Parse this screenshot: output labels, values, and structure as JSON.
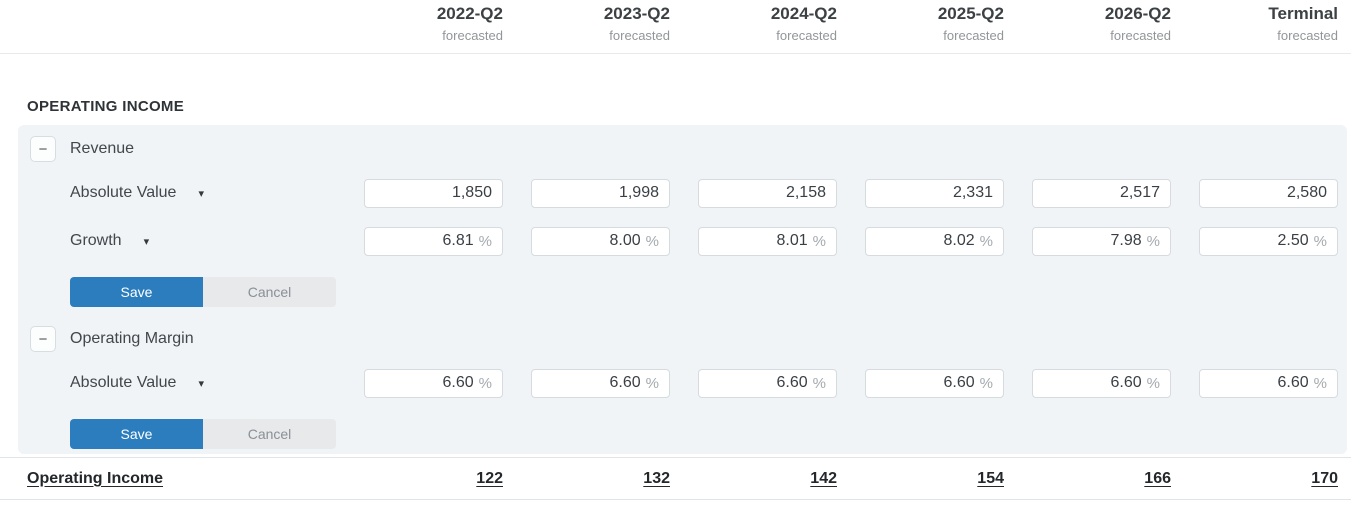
{
  "columns": [
    {
      "label": "2022-Q2",
      "sublabel": "forecasted"
    },
    {
      "label": "2023-Q2",
      "sublabel": "forecasted"
    },
    {
      "label": "2024-Q2",
      "sublabel": "forecasted"
    },
    {
      "label": "2025-Q2",
      "sublabel": "forecasted"
    },
    {
      "label": "2026-Q2",
      "sublabel": "forecasted"
    },
    {
      "label": "Terminal",
      "sublabel": "forecasted"
    }
  ],
  "section_title": "OPERATING INCOME",
  "icons": {
    "collapse": "−",
    "dropdown": "▾"
  },
  "actions": {
    "save": "Save",
    "cancel": "Cancel"
  },
  "groups": [
    {
      "name": "Revenue",
      "rows": [
        {
          "label": "Absolute Value",
          "suffix": "",
          "values": [
            "1,850",
            "1,998",
            "2,158",
            "2,331",
            "2,517",
            "2,580"
          ]
        },
        {
          "label": "Growth",
          "suffix": "%",
          "values": [
            "6.81",
            "8.00",
            "8.01",
            "8.02",
            "7.98",
            "2.50"
          ]
        }
      ]
    },
    {
      "name": "Operating Margin",
      "rows": [
        {
          "label": "Absolute Value",
          "suffix": "%",
          "values": [
            "6.60",
            "6.60",
            "6.60",
            "6.60",
            "6.60",
            "6.60"
          ]
        }
      ]
    }
  ],
  "total_row": {
    "label": "Operating Income",
    "values": [
      "122",
      "132",
      "142",
      "154",
      "166",
      "170"
    ]
  },
  "colors": {
    "accent_blue": "#2b7dbd",
    "panel_bg": "#f0f4f6",
    "cancel_bg": "#e7e9eb"
  }
}
